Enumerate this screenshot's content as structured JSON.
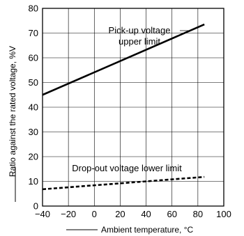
{
  "chart_data": {
    "type": "line",
    "xlabel": "Ambient temperature, °C",
    "ylabel": "Ratio against the rated voltage, %V",
    "xlim": [
      -40,
      100
    ],
    "ylim": [
      0,
      80
    ],
    "x_ticks": [
      "−40",
      "−20",
      "0",
      "20",
      "40",
      "60",
      "80",
      "100"
    ],
    "y_ticks": [
      "0",
      "10",
      "20",
      "30",
      "40",
      "50",
      "60",
      "70",
      "80"
    ],
    "grid": true,
    "series": [
      {
        "name": "Pick-up voltage upper limit",
        "label_lines": [
          "Pick-up voltage",
          "upper limit"
        ],
        "style": "solid",
        "color": "#000000",
        "x": [
          -40,
          85
        ],
        "y": [
          45,
          73.5
        ]
      },
      {
        "name": "Drop-out voltage lower limit",
        "label_lines": [
          "Drop-out voltage lower limit"
        ],
        "style": "dashed",
        "color": "#000000",
        "x": [
          -40,
          85
        ],
        "y": [
          6.8,
          11.8
        ]
      }
    ]
  }
}
